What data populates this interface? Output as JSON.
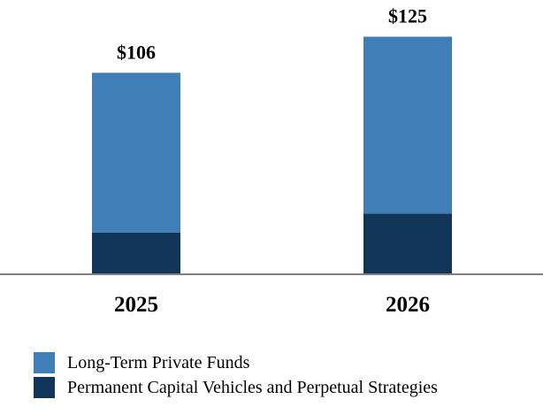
{
  "chart_data": {
    "type": "bar",
    "stacked": true,
    "categories": [
      "2025",
      "2026"
    ],
    "series": [
      {
        "name": "Permanent Capital Vehicles and Perpetual Strategies",
        "values": [
          22,
          32
        ],
        "color": "#12365a"
      },
      {
        "name": "Long-Term Private Funds",
        "values": [
          84,
          93
        ],
        "color": "#3f7eb7"
      }
    ],
    "totals": [
      106,
      125
    ],
    "total_labels": [
      "$106",
      "$125"
    ],
    "ylim": [
      0,
      135
    ],
    "grid": false,
    "legend_position": "bottom-left",
    "baseline_color": "#7f7f7f"
  },
  "legend": {
    "items": [
      {
        "label": "Long-Term Private Funds",
        "color": "#3f7eb7"
      },
      {
        "label": "Permanent Capital Vehicles and Perpetual Strategies",
        "color": "#12365a"
      }
    ]
  }
}
